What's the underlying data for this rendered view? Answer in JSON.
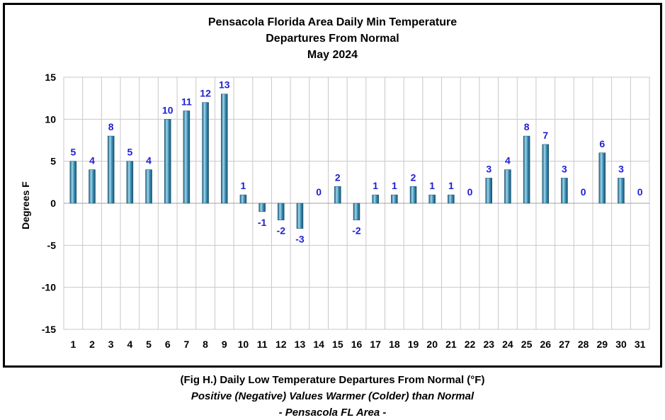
{
  "chart_data": {
    "type": "bar",
    "title_lines": [
      "Pensacola Florida Area Daily Min Temperature",
      "Departures From Normal",
      "May 2024"
    ],
    "xlabel": "",
    "ylabel": "Degrees F",
    "ylim": [
      -15,
      15
    ],
    "yticks": [
      15,
      10,
      5,
      0,
      -5,
      -10,
      -15
    ],
    "categories": [
      "1",
      "2",
      "3",
      "4",
      "5",
      "6",
      "7",
      "8",
      "9",
      "10",
      "11",
      "12",
      "13",
      "14",
      "15",
      "16",
      "17",
      "18",
      "19",
      "20",
      "21",
      "22",
      "23",
      "24",
      "25",
      "26",
      "27",
      "28",
      "29",
      "30",
      "31"
    ],
    "values": [
      5,
      4,
      8,
      5,
      4,
      10,
      11,
      12,
      13,
      1,
      -1,
      -2,
      -3,
      0,
      2,
      -2,
      1,
      1,
      2,
      1,
      1,
      0,
      3,
      4,
      8,
      7,
      3,
      0,
      6,
      3,
      0
    ],
    "grid": true,
    "bar_color": "#3a8fb5",
    "label_color": "#1f1fd6"
  },
  "caption": {
    "line1": "(Fig H.) Daily Low Temperature Departures From Normal (°F)",
    "line2": "Positive (Negative) Values Warmer (Colder) than Normal",
    "line3": "- Pensacola FL Area -"
  }
}
